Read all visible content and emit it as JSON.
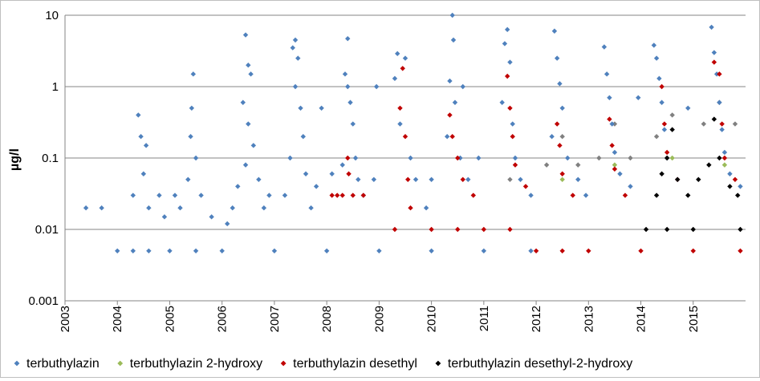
{
  "chart_data": {
    "type": "scatter",
    "title": "",
    "xlabel": "",
    "ylabel": "µg/l",
    "y_scale": "log",
    "ylim": [
      0.001,
      10
    ],
    "y_ticks": [
      0.001,
      0.01,
      0.1,
      1,
      10
    ],
    "y_tick_labels": [
      "0.001",
      "0.01",
      "0.1",
      "1",
      "10"
    ],
    "xlim": [
      2003.0,
      2016.0
    ],
    "x_tick_labels": [
      "2003",
      "2004",
      "2005",
      "2006",
      "2007",
      "2008",
      "2009",
      "2010",
      "2011",
      "2012",
      "2013",
      "2014",
      "2015"
    ],
    "grid": "horizontal",
    "legend_position": "bottom",
    "series": [
      {
        "name": "terbuthylazin",
        "color": "#4f81bd",
        "points": [
          [
            2003.4,
            0.02
          ],
          [
            2003.7,
            0.02
          ],
          [
            2004.0,
            0.005
          ],
          [
            2004.3,
            0.005
          ],
          [
            2004.6,
            0.005
          ],
          [
            2005.0,
            0.005
          ],
          [
            2005.5,
            0.005
          ],
          [
            2006.0,
            0.005
          ],
          [
            2007.0,
            0.005
          ],
          [
            2008.0,
            0.005
          ],
          [
            2009.0,
            0.005
          ],
          [
            2010.0,
            0.005
          ],
          [
            2011.0,
            0.005
          ],
          [
            2011.9,
            0.005
          ],
          [
            2004.4,
            0.4
          ],
          [
            2004.45,
            0.2
          ],
          [
            2004.55,
            0.15
          ],
          [
            2004.5,
            0.06
          ],
          [
            2004.3,
            0.03
          ],
          [
            2004.6,
            0.02
          ],
          [
            2004.8,
            0.03
          ],
          [
            2004.9,
            0.015
          ],
          [
            2005.1,
            0.03
          ],
          [
            2005.2,
            0.02
          ],
          [
            2005.45,
            1.5
          ],
          [
            2005.42,
            0.5
          ],
          [
            2005.4,
            0.2
          ],
          [
            2005.5,
            0.1
          ],
          [
            2005.35,
            0.05
          ],
          [
            2005.6,
            0.03
          ],
          [
            2005.8,
            0.015
          ],
          [
            2006.1,
            0.012
          ],
          [
            2006.2,
            0.02
          ],
          [
            2006.45,
            5.3
          ],
          [
            2006.5,
            2.0
          ],
          [
            2006.55,
            1.5
          ],
          [
            2006.4,
            0.6
          ],
          [
            2006.5,
            0.3
          ],
          [
            2006.6,
            0.15
          ],
          [
            2006.45,
            0.08
          ],
          [
            2006.7,
            0.05
          ],
          [
            2006.9,
            0.03
          ],
          [
            2006.8,
            0.02
          ],
          [
            2006.3,
            0.04
          ],
          [
            2007.4,
            4.5
          ],
          [
            2007.35,
            3.5
          ],
          [
            2007.45,
            2.5
          ],
          [
            2007.4,
            1.0
          ],
          [
            2007.5,
            0.5
          ],
          [
            2007.55,
            0.2
          ],
          [
            2007.3,
            0.1
          ],
          [
            2007.6,
            0.06
          ],
          [
            2007.8,
            0.04
          ],
          [
            2007.2,
            0.03
          ],
          [
            2007.7,
            0.02
          ],
          [
            2007.9,
            0.5
          ],
          [
            2008.1,
            0.06
          ],
          [
            2008.4,
            4.7
          ],
          [
            2008.35,
            1.5
          ],
          [
            2008.4,
            1.0
          ],
          [
            2008.45,
            0.6
          ],
          [
            2008.5,
            0.3
          ],
          [
            2008.55,
            0.1
          ],
          [
            2008.6,
            0.05
          ],
          [
            2008.3,
            0.08
          ],
          [
            2008.7,
            0.03
          ],
          [
            2008.9,
            0.05
          ],
          [
            2008.95,
            1.0
          ],
          [
            2009.3,
            1.3
          ],
          [
            2009.35,
            2.9
          ],
          [
            2009.5,
            2.5
          ],
          [
            2009.4,
            0.3
          ],
          [
            2009.6,
            0.1
          ],
          [
            2009.7,
            0.05
          ],
          [
            2009.9,
            0.02
          ],
          [
            2010.0,
            0.05
          ],
          [
            2010.4,
            10
          ],
          [
            2010.42,
            4.5
          ],
          [
            2010.35,
            1.2
          ],
          [
            2010.45,
            0.6
          ],
          [
            2010.3,
            0.2
          ],
          [
            2010.55,
            0.1
          ],
          [
            2010.7,
            0.05
          ],
          [
            2010.9,
            0.1
          ],
          [
            2010.6,
            1.0
          ],
          [
            2011.45,
            6.3
          ],
          [
            2011.4,
            4.0
          ],
          [
            2011.5,
            2.2
          ],
          [
            2011.35,
            0.6
          ],
          [
            2011.55,
            0.3
          ],
          [
            2011.6,
            0.1
          ],
          [
            2011.7,
            0.05
          ],
          [
            2011.9,
            0.03
          ],
          [
            2012.35,
            6.0
          ],
          [
            2012.4,
            2.5
          ],
          [
            2012.45,
            1.1
          ],
          [
            2012.5,
            0.5
          ],
          [
            2012.3,
            0.2
          ],
          [
            2012.6,
            0.1
          ],
          [
            2012.8,
            0.05
          ],
          [
            2012.95,
            0.03
          ],
          [
            2013.3,
            3.6
          ],
          [
            2013.35,
            1.5
          ],
          [
            2013.4,
            0.7
          ],
          [
            2013.45,
            0.3
          ],
          [
            2013.5,
            0.12
          ],
          [
            2013.6,
            0.06
          ],
          [
            2013.8,
            0.04
          ],
          [
            2013.95,
            0.7
          ],
          [
            2014.25,
            3.8
          ],
          [
            2014.3,
            2.5
          ],
          [
            2014.35,
            1.3
          ],
          [
            2014.4,
            0.6
          ],
          [
            2014.45,
            0.25
          ],
          [
            2014.5,
            0.1
          ],
          [
            2014.7,
            0.05
          ],
          [
            2014.9,
            0.5
          ],
          [
            2015.35,
            6.8
          ],
          [
            2015.4,
            3.0
          ],
          [
            2015.45,
            1.5
          ],
          [
            2015.5,
            0.6
          ],
          [
            2015.55,
            0.25
          ],
          [
            2015.6,
            0.12
          ],
          [
            2015.7,
            0.06
          ],
          [
            2015.9,
            0.04
          ]
        ]
      },
      {
        "name": "terbuthylazin 2-hydroxy",
        "color": "#9bbb59",
        "points": [
          [
            2012.5,
            0.05
          ],
          [
            2013.5,
            0.08
          ],
          [
            2014.6,
            0.1
          ],
          [
            2015.6,
            0.08
          ]
        ]
      },
      {
        "name": "terbuthylazin desethyl",
        "color": "#c00000",
        "points": [
          [
            2008.1,
            0.03
          ],
          [
            2008.2,
            0.03
          ],
          [
            2008.3,
            0.03
          ],
          [
            2008.5,
            0.03
          ],
          [
            2008.7,
            0.03
          ],
          [
            2008.4,
            0.1
          ],
          [
            2008.42,
            0.06
          ],
          [
            2009.3,
            0.01
          ],
          [
            2009.4,
            0.5
          ],
          [
            2009.45,
            1.8
          ],
          [
            2009.5,
            0.2
          ],
          [
            2009.55,
            0.05
          ],
          [
            2009.6,
            0.02
          ],
          [
            2010.0,
            0.01
          ],
          [
            2010.5,
            0.01
          ],
          [
            2011.0,
            0.01
          ],
          [
            2011.5,
            0.01
          ],
          [
            2010.35,
            0.4
          ],
          [
            2010.4,
            0.2
          ],
          [
            2010.5,
            0.1
          ],
          [
            2010.6,
            0.05
          ],
          [
            2010.8,
            0.03
          ],
          [
            2011.45,
            1.4
          ],
          [
            2011.5,
            0.5
          ],
          [
            2011.55,
            0.2
          ],
          [
            2011.6,
            0.08
          ],
          [
            2011.8,
            0.04
          ],
          [
            2012.0,
            0.005
          ],
          [
            2012.5,
            0.005
          ],
          [
            2013.0,
            0.005
          ],
          [
            2014.0,
            0.005
          ],
          [
            2015.0,
            0.005
          ],
          [
            2015.9,
            0.005
          ],
          [
            2012.4,
            0.3
          ],
          [
            2012.45,
            0.15
          ],
          [
            2012.5,
            0.06
          ],
          [
            2012.7,
            0.03
          ],
          [
            2013.4,
            0.35
          ],
          [
            2013.45,
            0.15
          ],
          [
            2013.5,
            0.07
          ],
          [
            2013.7,
            0.03
          ],
          [
            2014.4,
            1.0
          ],
          [
            2014.45,
            0.3
          ],
          [
            2014.5,
            0.12
          ],
          [
            2014.7,
            0.05
          ],
          [
            2015.4,
            2.2
          ],
          [
            2015.5,
            1.5
          ],
          [
            2015.55,
            0.3
          ],
          [
            2015.6,
            0.1
          ],
          [
            2015.8,
            0.05
          ]
        ]
      },
      {
        "name": "terbuthylazin desethyl-2-hydroxy",
        "color": "#000000",
        "points": [
          [
            2014.1,
            0.01
          ],
          [
            2014.5,
            0.01
          ],
          [
            2015.0,
            0.01
          ],
          [
            2015.9,
            0.01
          ],
          [
            2014.3,
            0.03
          ],
          [
            2014.4,
            0.06
          ],
          [
            2014.5,
            0.1
          ],
          [
            2014.6,
            0.25
          ],
          [
            2014.7,
            0.05
          ],
          [
            2014.9,
            0.03
          ],
          [
            2015.1,
            0.05
          ],
          [
            2015.3,
            0.08
          ],
          [
            2015.4,
            0.35
          ],
          [
            2015.5,
            0.1
          ],
          [
            2015.7,
            0.04
          ],
          [
            2015.85,
            0.03
          ]
        ]
      },
      {
        "name": "",
        "color": "#808080",
        "points": [
          [
            2011.5,
            0.05
          ],
          [
            2012.2,
            0.08
          ],
          [
            2012.5,
            0.2
          ],
          [
            2012.8,
            0.08
          ],
          [
            2013.2,
            0.1
          ],
          [
            2013.5,
            0.3
          ],
          [
            2013.8,
            0.1
          ],
          [
            2014.3,
            0.2
          ],
          [
            2014.6,
            0.4
          ],
          [
            2015.2,
            0.3
          ],
          [
            2015.5,
            0.6
          ],
          [
            2015.8,
            0.3
          ]
        ]
      }
    ]
  }
}
